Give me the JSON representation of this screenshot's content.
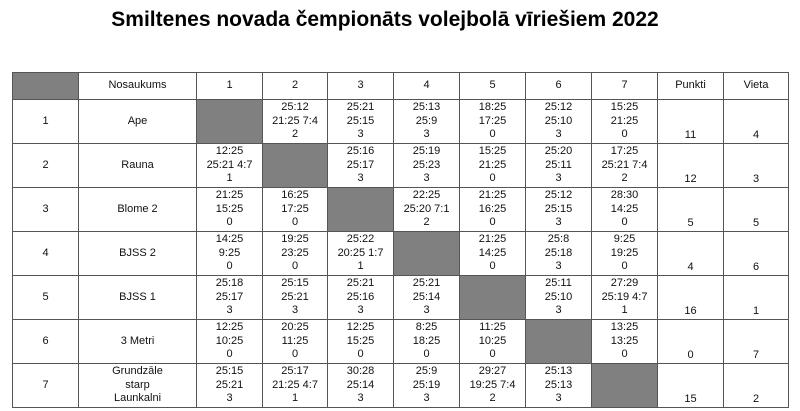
{
  "title": "Smiltenes novada čempionāts volejbolā vīriešiem 2022",
  "header": {
    "name": "Nosaukums",
    "cols": [
      "1",
      "2",
      "3",
      "4",
      "5",
      "6",
      "7"
    ],
    "points": "Punkti",
    "place": "Vieta"
  },
  "teams": [
    {
      "num": "1",
      "name": [
        "Ape"
      ],
      "results": [
        null,
        [
          "25:12",
          "21:25 7:4",
          "2"
        ],
        [
          "25:21",
          "25:15",
          "3"
        ],
        [
          "25:13",
          "25:9",
          "3"
        ],
        [
          "18:25",
          "17:25",
          "0"
        ],
        [
          "25:12",
          "25:10",
          "3"
        ],
        [
          "15:25",
          "21:25",
          "0"
        ]
      ],
      "points": "11",
      "place": "4"
    },
    {
      "num": "2",
      "name": [
        "Rauna"
      ],
      "results": [
        [
          "12:25",
          "25:21 4:7",
          "1"
        ],
        null,
        [
          "25:16",
          "25:17",
          "3"
        ],
        [
          "25:19",
          "25:23",
          "3"
        ],
        [
          "15:25",
          "21:25",
          "0"
        ],
        [
          "25:20",
          "25:11",
          "3"
        ],
        [
          "17:25",
          "25:21 7:4",
          "2"
        ]
      ],
      "points": "12",
      "place": "3"
    },
    {
      "num": "3",
      "name": [
        "Blome 2"
      ],
      "results": [
        [
          "21:25",
          "15:25",
          "0"
        ],
        [
          "16:25",
          "17:25",
          "0"
        ],
        null,
        [
          "22:25",
          "25:20 7:1",
          "2"
        ],
        [
          "21:25",
          "16:25",
          "0"
        ],
        [
          "25:12",
          "25:15",
          "3"
        ],
        [
          "28:30",
          "14:25",
          "0"
        ]
      ],
      "points": "5",
      "place": "5"
    },
    {
      "num": "4",
      "name": [
        "BJSS 2"
      ],
      "results": [
        [
          "14:25",
          "9:25",
          "0"
        ],
        [
          "19:25",
          "23:25",
          "0"
        ],
        [
          "25:22",
          "20:25 1:7",
          "1"
        ],
        null,
        [
          "21:25",
          "14:25",
          "0"
        ],
        [
          "25:8",
          "25:18",
          "3"
        ],
        [
          "9:25",
          "19:25",
          "0"
        ]
      ],
      "points": "4",
      "place": "6"
    },
    {
      "num": "5",
      "name": [
        "BJSS 1"
      ],
      "results": [
        [
          "25:18",
          "25:17",
          "3"
        ],
        [
          "25:15",
          "25:21",
          "3"
        ],
        [
          "25:21",
          "25:16",
          "3"
        ],
        [
          "25:21",
          "25:14",
          "3"
        ],
        null,
        [
          "25:11",
          "25:10",
          "3"
        ],
        [
          "27:29",
          "25:19 4:7",
          "1"
        ]
      ],
      "points": "16",
      "place": "1"
    },
    {
      "num": "6",
      "name": [
        "3 Metri"
      ],
      "results": [
        [
          "12:25",
          "10:25",
          "0"
        ],
        [
          "20:25",
          "11:25",
          "0"
        ],
        [
          "12:25",
          "15:25",
          "0"
        ],
        [
          "8:25",
          "18:25",
          "0"
        ],
        [
          "11:25",
          "10:25",
          "0"
        ],
        null,
        [
          "13:25",
          "13:25",
          "0"
        ]
      ],
      "points": "0",
      "place": "7"
    },
    {
      "num": "7",
      "name": [
        "Grundzāle",
        "starp",
        "Launkalni"
      ],
      "results": [
        [
          "25:15",
          "25:21",
          "3"
        ],
        [
          "25:17",
          "21:25 4:7",
          "1"
        ],
        [
          "30:28",
          "25:14",
          "3"
        ],
        [
          "25:9",
          "25:19",
          "3"
        ],
        [
          "29:27",
          "19:25 7:4",
          "2"
        ],
        [
          "25:13",
          "25:13",
          "3"
        ],
        null
      ],
      "points": "15",
      "place": "2"
    }
  ]
}
